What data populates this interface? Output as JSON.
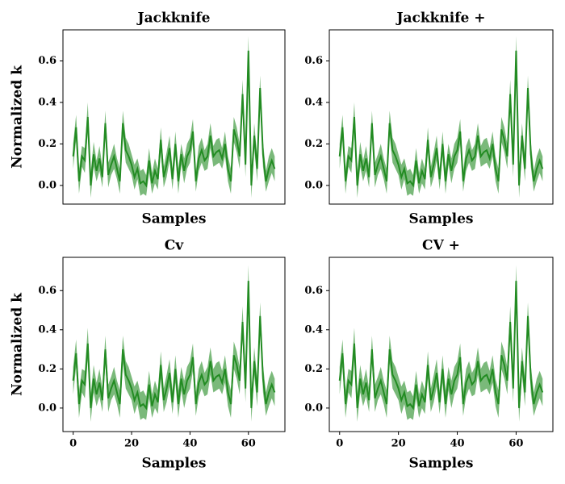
{
  "chart_data": [
    {
      "type": "line",
      "title": "Jackknife",
      "xlabel": "Samples",
      "ylabel": "Normalized k",
      "x": [
        0,
        1,
        2,
        3,
        4,
        5,
        6,
        7,
        8,
        9,
        10,
        11,
        12,
        13,
        14,
        15,
        16,
        17,
        18,
        19,
        20,
        21,
        22,
        23,
        24,
        25,
        26,
        27,
        28,
        29,
        30,
        31,
        32,
        33,
        34,
        35,
        36,
        37,
        38,
        39,
        40,
        41,
        42,
        43,
        44,
        45,
        46,
        47,
        48,
        49,
        50,
        51,
        52,
        53,
        54,
        55,
        56,
        57,
        58,
        59,
        60,
        61,
        62,
        63,
        64,
        65,
        66,
        67,
        68,
        69
      ],
      "series": [
        {
          "color": "#228b22",
          "values": [
            0.14,
            0.28,
            0.02,
            0.14,
            0.12,
            0.33,
            0.0,
            0.15,
            0.07,
            0.13,
            0.04,
            0.3,
            0.05,
            0.1,
            0.14,
            0.08,
            0.02,
            0.3,
            0.17,
            0.14,
            0.1,
            0.04,
            0.08,
            0.01,
            0.02,
            0.0,
            0.12,
            0.01,
            0.07,
            0.03,
            0.22,
            0.04,
            0.1,
            0.18,
            0.03,
            0.2,
            0.02,
            0.15,
            0.07,
            0.14,
            0.17,
            0.26,
            0.02,
            0.13,
            0.17,
            0.12,
            0.14,
            0.24,
            0.14,
            0.16,
            0.17,
            0.13,
            0.2,
            0.08,
            0.02,
            0.27,
            0.22,
            0.14,
            0.44,
            0.1,
            0.65,
            0.0,
            0.24,
            0.08,
            0.47,
            0.15,
            0.02,
            0.08,
            0.12,
            0.08
          ],
          "errors": [
            0.06,
            0.06,
            0.06,
            0.05,
            0.06,
            0.07,
            0.06,
            0.06,
            0.05,
            0.06,
            0.05,
            0.06,
            0.06,
            0.05,
            0.06,
            0.05,
            0.06,
            0.06,
            0.06,
            0.06,
            0.05,
            0.06,
            0.05,
            0.06,
            0.06,
            0.05,
            0.06,
            0.05,
            0.06,
            0.05,
            0.06,
            0.05,
            0.06,
            0.06,
            0.05,
            0.06,
            0.06,
            0.05,
            0.06,
            0.06,
            0.06,
            0.06,
            0.05,
            0.06,
            0.06,
            0.05,
            0.06,
            0.06,
            0.05,
            0.06,
            0.06,
            0.05,
            0.06,
            0.06,
            0.06,
            0.06,
            0.06,
            0.06,
            0.07,
            0.06,
            0.07,
            0.06,
            0.06,
            0.06,
            0.06,
            0.06,
            0.05,
            0.06,
            0.06,
            0.06
          ]
        }
      ],
      "xlim": [
        -3.5,
        72.5
      ],
      "ylim": [
        -0.09,
        0.75
      ],
      "yticks": [
        {
          "value": 0,
          "label": "0.0"
        },
        0.2,
        0.4,
        0.6
      ]
    },
    {
      "type": "line",
      "title": "Jackknife +",
      "xlabel": "Samples",
      "x": [
        0,
        1,
        2,
        3,
        4,
        5,
        6,
        7,
        8,
        9,
        10,
        11,
        12,
        13,
        14,
        15,
        16,
        17,
        18,
        19,
        20,
        21,
        22,
        23,
        24,
        25,
        26,
        27,
        28,
        29,
        30,
        31,
        32,
        33,
        34,
        35,
        36,
        37,
        38,
        39,
        40,
        41,
        42,
        43,
        44,
        45,
        46,
        47,
        48,
        49,
        50,
        51,
        52,
        53,
        54,
        55,
        56,
        57,
        58,
        59,
        60,
        61,
        62,
        63,
        64,
        65,
        66,
        67,
        68,
        69
      ],
      "series": [
        {
          "color": "#228b22",
          "values": [
            0.14,
            0.28,
            0.02,
            0.14,
            0.12,
            0.33,
            0.0,
            0.15,
            0.07,
            0.13,
            0.04,
            0.3,
            0.05,
            0.1,
            0.14,
            0.08,
            0.02,
            0.3,
            0.17,
            0.14,
            0.1,
            0.04,
            0.08,
            0.01,
            0.02,
            0.0,
            0.12,
            0.01,
            0.07,
            0.03,
            0.22,
            0.04,
            0.1,
            0.18,
            0.03,
            0.2,
            0.02,
            0.15,
            0.07,
            0.14,
            0.17,
            0.26,
            0.02,
            0.13,
            0.17,
            0.12,
            0.14,
            0.24,
            0.14,
            0.16,
            0.17,
            0.13,
            0.2,
            0.08,
            0.02,
            0.27,
            0.22,
            0.14,
            0.44,
            0.1,
            0.65,
            0.0,
            0.24,
            0.08,
            0.47,
            0.15,
            0.02,
            0.08,
            0.12,
            0.08
          ],
          "errors": [
            0.06,
            0.06,
            0.06,
            0.05,
            0.06,
            0.07,
            0.06,
            0.06,
            0.05,
            0.06,
            0.05,
            0.06,
            0.06,
            0.05,
            0.06,
            0.05,
            0.06,
            0.06,
            0.06,
            0.06,
            0.05,
            0.06,
            0.05,
            0.06,
            0.06,
            0.05,
            0.06,
            0.05,
            0.06,
            0.05,
            0.06,
            0.05,
            0.06,
            0.06,
            0.05,
            0.06,
            0.06,
            0.05,
            0.06,
            0.06,
            0.06,
            0.06,
            0.05,
            0.06,
            0.06,
            0.05,
            0.06,
            0.06,
            0.05,
            0.06,
            0.06,
            0.05,
            0.06,
            0.06,
            0.06,
            0.06,
            0.06,
            0.06,
            0.07,
            0.06,
            0.07,
            0.06,
            0.06,
            0.06,
            0.06,
            0.06,
            0.05,
            0.06,
            0.06,
            0.06
          ]
        }
      ],
      "xlim": [
        -3.5,
        72.5
      ],
      "ylim": [
        -0.09,
        0.75
      ],
      "yticks": [
        {
          "value": 0,
          "label": "0.0"
        },
        0.2,
        0.4,
        0.6
      ]
    },
    {
      "type": "line",
      "title": "Cv",
      "xlabel": "Samples",
      "ylabel": "Normalized k",
      "x": [
        0,
        1,
        2,
        3,
        4,
        5,
        6,
        7,
        8,
        9,
        10,
        11,
        12,
        13,
        14,
        15,
        16,
        17,
        18,
        19,
        20,
        21,
        22,
        23,
        24,
        25,
        26,
        27,
        28,
        29,
        30,
        31,
        32,
        33,
        34,
        35,
        36,
        37,
        38,
        39,
        40,
        41,
        42,
        43,
        44,
        45,
        46,
        47,
        48,
        49,
        50,
        51,
        52,
        53,
        54,
        55,
        56,
        57,
        58,
        59,
        60,
        61,
        62,
        63,
        64,
        65,
        66,
        67,
        68,
        69
      ],
      "series": [
        {
          "color": "#228b22",
          "values": [
            0.14,
            0.28,
            0.02,
            0.14,
            0.12,
            0.33,
            0.0,
            0.15,
            0.07,
            0.13,
            0.04,
            0.3,
            0.05,
            0.1,
            0.14,
            0.08,
            0.02,
            0.3,
            0.17,
            0.14,
            0.1,
            0.04,
            0.08,
            0.01,
            0.02,
            0.0,
            0.12,
            0.01,
            0.07,
            0.03,
            0.22,
            0.04,
            0.1,
            0.18,
            0.03,
            0.2,
            0.02,
            0.15,
            0.07,
            0.14,
            0.17,
            0.26,
            0.02,
            0.13,
            0.17,
            0.12,
            0.14,
            0.24,
            0.14,
            0.16,
            0.17,
            0.13,
            0.2,
            0.08,
            0.02,
            0.27,
            0.22,
            0.14,
            0.44,
            0.1,
            0.65,
            0.0,
            0.24,
            0.08,
            0.47,
            0.15,
            0.02,
            0.08,
            0.12,
            0.08
          ],
          "errors": [
            0.07,
            0.07,
            0.07,
            0.06,
            0.07,
            0.08,
            0.07,
            0.07,
            0.06,
            0.07,
            0.06,
            0.07,
            0.07,
            0.06,
            0.07,
            0.06,
            0.07,
            0.07,
            0.07,
            0.07,
            0.06,
            0.07,
            0.06,
            0.07,
            0.07,
            0.06,
            0.07,
            0.06,
            0.07,
            0.06,
            0.07,
            0.06,
            0.07,
            0.07,
            0.06,
            0.07,
            0.07,
            0.06,
            0.07,
            0.07,
            0.07,
            0.07,
            0.06,
            0.07,
            0.07,
            0.06,
            0.07,
            0.07,
            0.06,
            0.07,
            0.07,
            0.06,
            0.07,
            0.07,
            0.07,
            0.07,
            0.07,
            0.07,
            0.08,
            0.07,
            0.08,
            0.07,
            0.07,
            0.07,
            0.07,
            0.07,
            0.06,
            0.07,
            0.07,
            0.07
          ]
        }
      ],
      "xlim": [
        -3.5,
        72.5
      ],
      "ylim": [
        -0.12,
        0.77
      ],
      "xticks": [
        0,
        20,
        40,
        60
      ],
      "yticks": [
        {
          "value": 0,
          "label": "0.0"
        },
        0.2,
        0.4,
        0.6
      ]
    },
    {
      "type": "line",
      "title": "CV +",
      "xlabel": "Samples",
      "x": [
        0,
        1,
        2,
        3,
        4,
        5,
        6,
        7,
        8,
        9,
        10,
        11,
        12,
        13,
        14,
        15,
        16,
        17,
        18,
        19,
        20,
        21,
        22,
        23,
        24,
        25,
        26,
        27,
        28,
        29,
        30,
        31,
        32,
        33,
        34,
        35,
        36,
        37,
        38,
        39,
        40,
        41,
        42,
        43,
        44,
        45,
        46,
        47,
        48,
        49,
        50,
        51,
        52,
        53,
        54,
        55,
        56,
        57,
        58,
        59,
        60,
        61,
        62,
        63,
        64,
        65,
        66,
        67,
        68,
        69
      ],
      "series": [
        {
          "color": "#228b22",
          "values": [
            0.14,
            0.28,
            0.02,
            0.14,
            0.12,
            0.33,
            0.0,
            0.15,
            0.07,
            0.13,
            0.04,
            0.3,
            0.05,
            0.1,
            0.14,
            0.08,
            0.02,
            0.3,
            0.17,
            0.14,
            0.1,
            0.04,
            0.08,
            0.01,
            0.02,
            0.0,
            0.12,
            0.01,
            0.07,
            0.03,
            0.22,
            0.04,
            0.1,
            0.18,
            0.03,
            0.2,
            0.02,
            0.15,
            0.07,
            0.14,
            0.17,
            0.26,
            0.02,
            0.13,
            0.17,
            0.12,
            0.14,
            0.24,
            0.14,
            0.16,
            0.17,
            0.13,
            0.2,
            0.08,
            0.02,
            0.27,
            0.22,
            0.14,
            0.44,
            0.1,
            0.65,
            0.0,
            0.24,
            0.08,
            0.47,
            0.15,
            0.02,
            0.08,
            0.12,
            0.08
          ],
          "errors": [
            0.07,
            0.07,
            0.07,
            0.06,
            0.07,
            0.08,
            0.07,
            0.07,
            0.06,
            0.07,
            0.06,
            0.07,
            0.07,
            0.06,
            0.07,
            0.06,
            0.07,
            0.07,
            0.07,
            0.07,
            0.06,
            0.07,
            0.06,
            0.07,
            0.07,
            0.06,
            0.07,
            0.06,
            0.07,
            0.06,
            0.07,
            0.06,
            0.07,
            0.07,
            0.06,
            0.07,
            0.07,
            0.06,
            0.07,
            0.07,
            0.07,
            0.07,
            0.06,
            0.07,
            0.07,
            0.06,
            0.07,
            0.07,
            0.06,
            0.07,
            0.07,
            0.06,
            0.07,
            0.07,
            0.07,
            0.07,
            0.07,
            0.07,
            0.08,
            0.07,
            0.08,
            0.07,
            0.07,
            0.07,
            0.07,
            0.07,
            0.06,
            0.07,
            0.07,
            0.07
          ]
        }
      ],
      "xlim": [
        -3.5,
        72.5
      ],
      "ylim": [
        -0.12,
        0.77
      ],
      "xticks": [
        0,
        20,
        40,
        60
      ],
      "yticks": [
        {
          "value": 0,
          "label": "0.0"
        },
        0.2,
        0.4,
        0.6
      ]
    }
  ]
}
